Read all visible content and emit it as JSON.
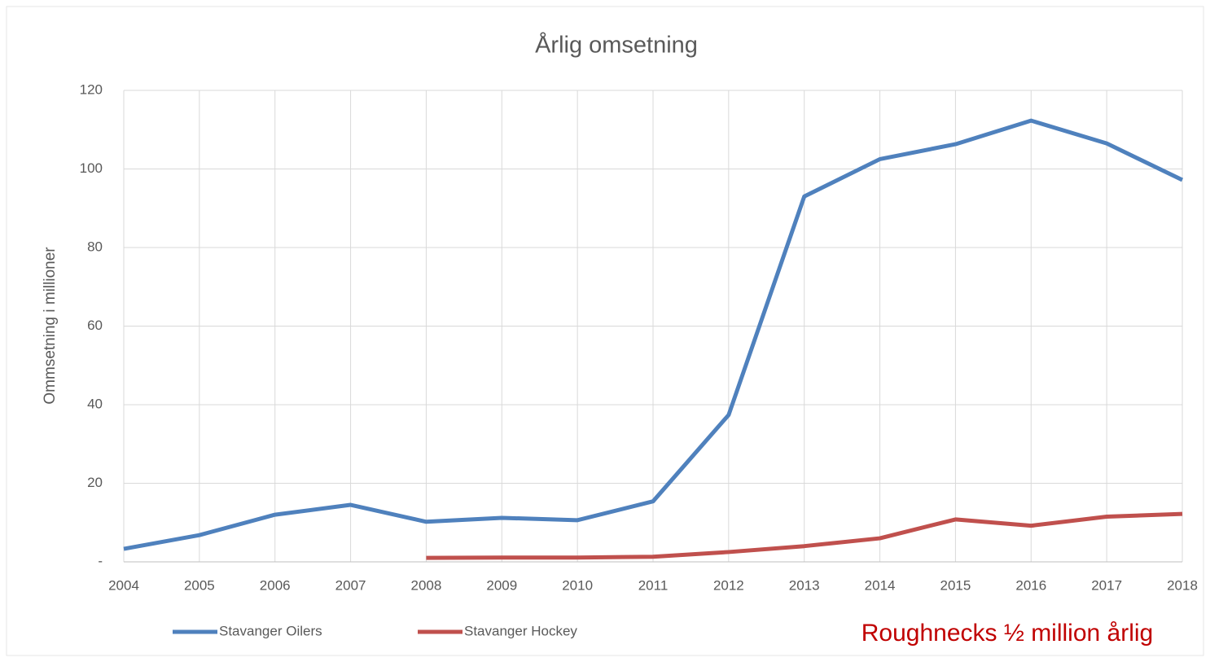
{
  "chart_data": {
    "type": "line",
    "title": "Årlig omsetning",
    "y_label": "Ommsetning i millioner",
    "annotation": "Roughnecks ½ million årlig",
    "annotation_color": "#c00000",
    "x": [
      2004,
      2005,
      2006,
      2007,
      2008,
      2009,
      2010,
      2011,
      2012,
      2013,
      2014,
      2015,
      2016,
      2017,
      2018
    ],
    "xlim": [
      2004,
      2018
    ],
    "xticks": [
      2004,
      2005,
      2006,
      2007,
      2008,
      2009,
      2010,
      2011,
      2012,
      2013,
      2014,
      2015,
      2016,
      2017,
      2018
    ],
    "ylim": [
      0,
      120
    ],
    "yticks": [
      {
        "value": 0,
        "label": "-"
      },
      20,
      40,
      60,
      80,
      100,
      120
    ],
    "grid": true,
    "legend": "bottom",
    "series": [
      {
        "name": "Stavanger Oilers",
        "color": "#4f81bd",
        "values": [
          3.3,
          6.8,
          12,
          14.5,
          10.2,
          11.2,
          10.6,
          15.4,
          37.4,
          93,
          102.5,
          106.3,
          112.3,
          106.5,
          97.2
        ]
      },
      {
        "name": "Stavanger Hockey",
        "color": "#c0504d",
        "values": [
          null,
          null,
          null,
          null,
          1.0,
          1.1,
          1.1,
          1.3,
          2.5,
          4.0,
          6.0,
          10.8,
          9.2,
          11.5,
          12.2
        ]
      }
    ]
  }
}
